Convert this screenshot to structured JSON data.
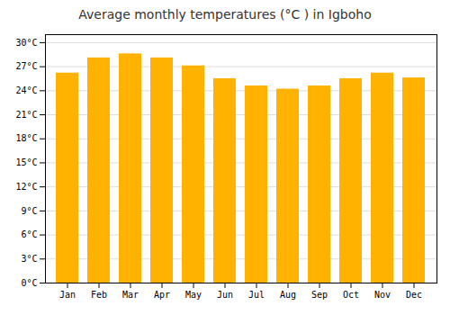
{
  "chart_data": {
    "type": "bar",
    "title": "Average monthly temperatures (°C ) in Igboho",
    "categories": [
      "Jan",
      "Feb",
      "Mar",
      "Apr",
      "May",
      "Jun",
      "Jul",
      "Aug",
      "Sep",
      "Oct",
      "Nov",
      "Dec"
    ],
    "values": [
      26.2,
      28.1,
      28.6,
      28.1,
      27.1,
      25.5,
      24.6,
      24.2,
      24.6,
      25.5,
      26.2,
      25.6
    ],
    "color": "#FFB300",
    "ylim": [
      0,
      31
    ],
    "yticks": [
      {
        "value": 0,
        "label": "0°C"
      },
      {
        "value": 3,
        "label": "3°C"
      },
      {
        "value": 6,
        "label": "6°C"
      },
      {
        "value": 9,
        "label": "9°C"
      },
      {
        "value": 12,
        "label": "12°C"
      },
      {
        "value": 15,
        "label": "15°C"
      },
      {
        "value": 18,
        "label": "18°C"
      },
      {
        "value": 21,
        "label": "21°C"
      },
      {
        "value": 24,
        "label": "24°C"
      },
      {
        "value": 27,
        "label": "27°C"
      },
      {
        "value": 30,
        "label": "30°C"
      }
    ],
    "grid": true
  }
}
